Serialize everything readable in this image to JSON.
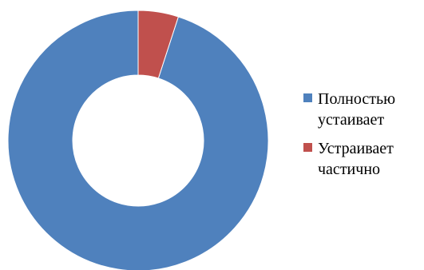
{
  "chart_data": {
    "type": "pie",
    "subtype": "donut",
    "title": "",
    "categories": [
      "Полностью устаивает",
      "Устраивает частично"
    ],
    "values": [
      95,
      5
    ],
    "colors": [
      "#4F81BD",
      "#C0504D"
    ],
    "legend_position": "right"
  }
}
